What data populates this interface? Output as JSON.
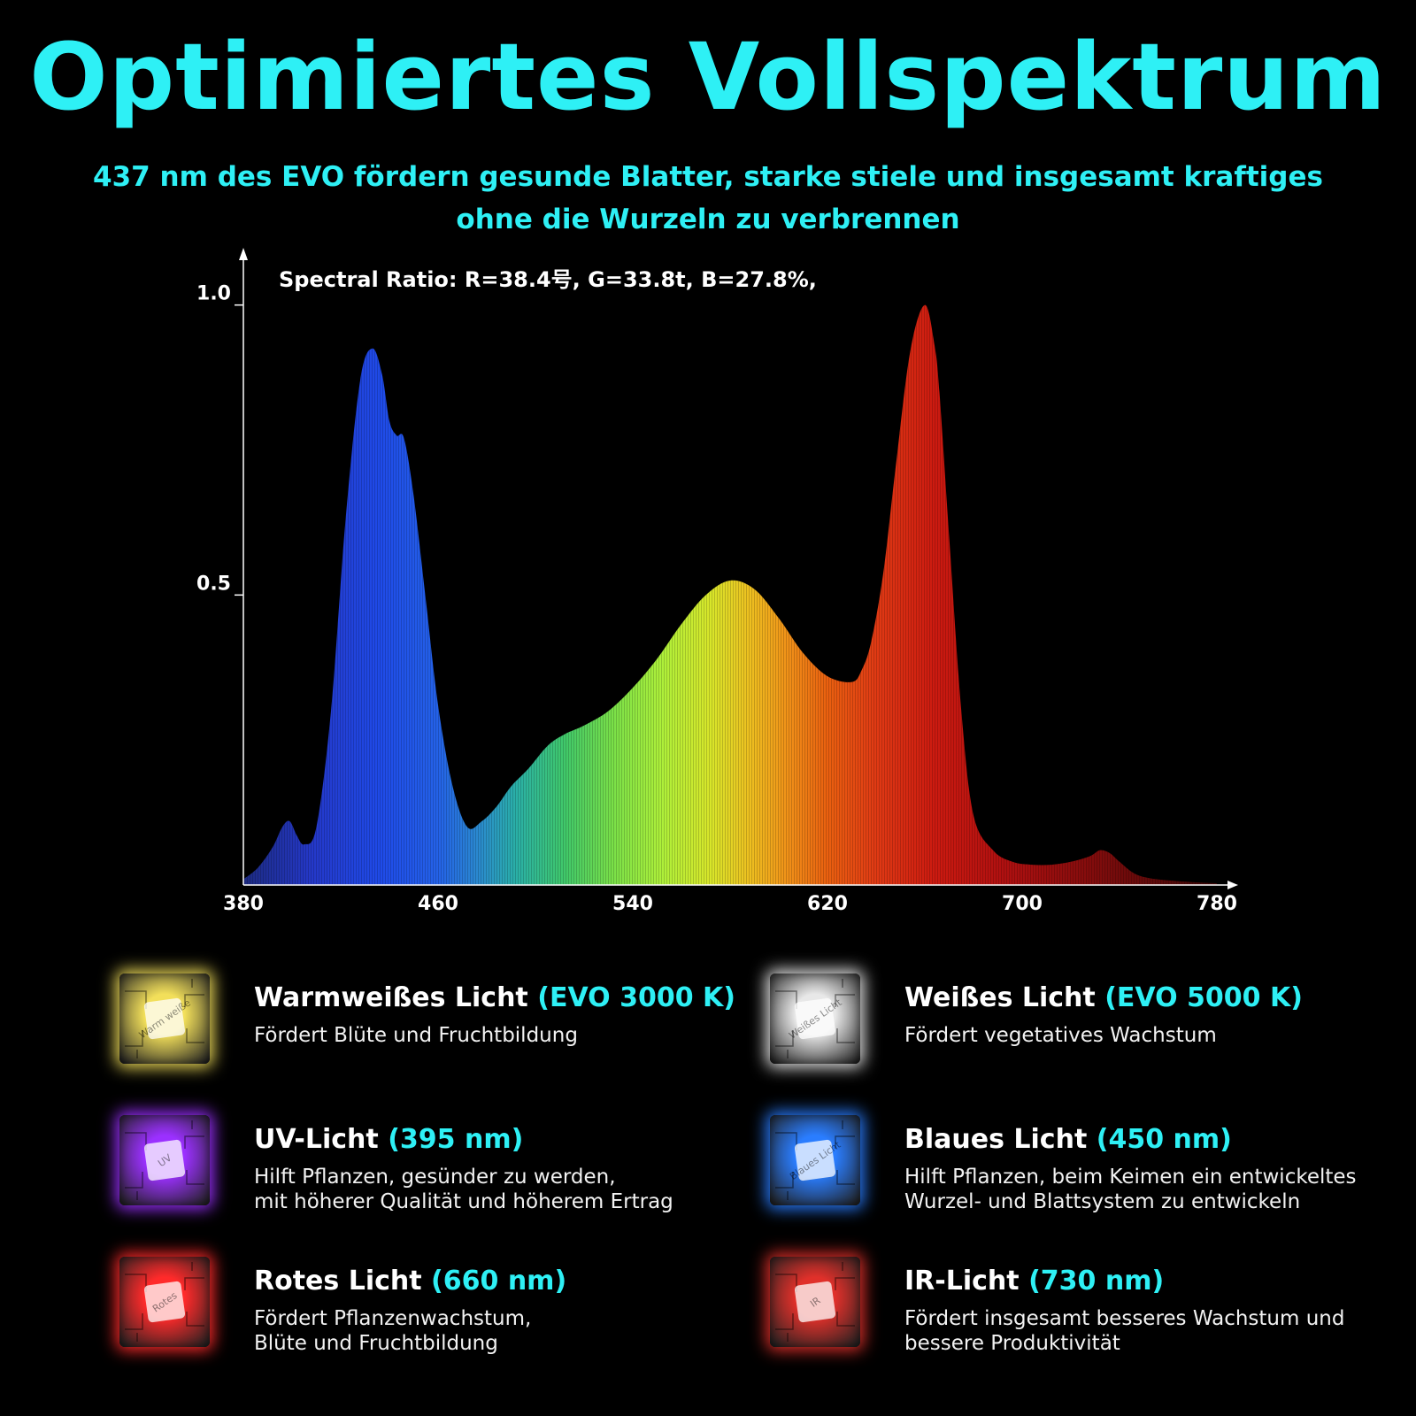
{
  "title": "Optimiertes Vollspektrum",
  "subtitle": "437 nm des EVO fördern gesunde Blatter, starke stiele und insgesamt kraftiges ohne die Wurzeln zu verbrennen",
  "chart_data": {
    "type": "area",
    "annotation": "Spectral Ratio:  R=38.4号,  G=33.8t,  B=27.8%,",
    "x_ticks": [
      "380",
      "460",
      "540",
      "620",
      "700",
      "780"
    ],
    "y_ticks": [
      "0.5",
      "1.0"
    ],
    "xlim": [
      380,
      780
    ],
    "ylim": [
      0,
      1.03
    ],
    "grid": false,
    "x": [
      380,
      386,
      392,
      396,
      399,
      402,
      405,
      410,
      416,
      422,
      428,
      433,
      437,
      440,
      443,
      446,
      450,
      455,
      460,
      466,
      472,
      478,
      484,
      490,
      497,
      505,
      512,
      520,
      530,
      540,
      550,
      560,
      570,
      580,
      590,
      600,
      610,
      620,
      630,
      634,
      638,
      643,
      648,
      654,
      660,
      664,
      666,
      670,
      675,
      680,
      688,
      696,
      704,
      712,
      720,
      728,
      732,
      736,
      740,
      746,
      752,
      760,
      770,
      780
    ],
    "values": [
      0.01,
      0.03,
      0.065,
      0.1,
      0.11,
      0.085,
      0.07,
      0.1,
      0.3,
      0.63,
      0.87,
      0.925,
      0.88,
      0.8,
      0.775,
      0.77,
      0.67,
      0.49,
      0.31,
      0.17,
      0.1,
      0.11,
      0.135,
      0.17,
      0.2,
      0.24,
      0.26,
      0.275,
      0.3,
      0.34,
      0.39,
      0.45,
      0.5,
      0.525,
      0.51,
      0.46,
      0.4,
      0.36,
      0.35,
      0.37,
      0.42,
      0.54,
      0.72,
      0.92,
      1.0,
      0.93,
      0.85,
      0.6,
      0.3,
      0.12,
      0.06,
      0.04,
      0.035,
      0.035,
      0.04,
      0.05,
      0.06,
      0.055,
      0.04,
      0.02,
      0.012,
      0.008,
      0.005,
      0.003
    ]
  },
  "legend": [
    {
      "name": "Warmweißes Licht",
      "spec": "(EVO 3000 K)",
      "desc": "Fördert Blüte und Fruchtbildung",
      "color": "#f2df5a",
      "chip_text": "Warm weiße",
      "icon": "warm-white-chip-icon"
    },
    {
      "name": "Weißes Licht",
      "spec": "(EVO 5000 K)",
      "desc": "Fördert vegetatives Wachstum",
      "color": "#e8e8e8",
      "chip_text": "Weißes Licht",
      "icon": "white-chip-icon"
    },
    {
      "name": "UV-Licht",
      "spec": "(395 nm)",
      "desc": "Hilft Pflanzen, gesünder zu werden,\nmit höherer Qualität und höherem Ertrag",
      "color": "#9b30ff",
      "chip_text": "UV",
      "icon": "uv-chip-icon"
    },
    {
      "name": "Blaues Licht",
      "spec": "(450 nm)",
      "desc": "Hilft Pflanzen, beim Keimen ein entwickeltes\nWurzel- und Blattsystem zu entwickeln",
      "color": "#2a7dff",
      "chip_text": "Blaues Licht",
      "icon": "blue-chip-icon"
    },
    {
      "name": "Rotes Licht",
      "spec": "(660 nm)",
      "desc": "Fördert Pflanzenwachstum,\nBlüte und Fruchtbildung",
      "color": "#ff2a2a",
      "chip_text": "Rotes",
      "icon": "red-chip-icon"
    },
    {
      "name": "IR-Licht",
      "spec": "(730 nm)",
      "desc": "Fördert insgesamt besseres Wachstum und\nbessere Produktivität",
      "color": "#e0302a",
      "chip_text": "IR",
      "icon": "ir-chip-icon"
    }
  ]
}
